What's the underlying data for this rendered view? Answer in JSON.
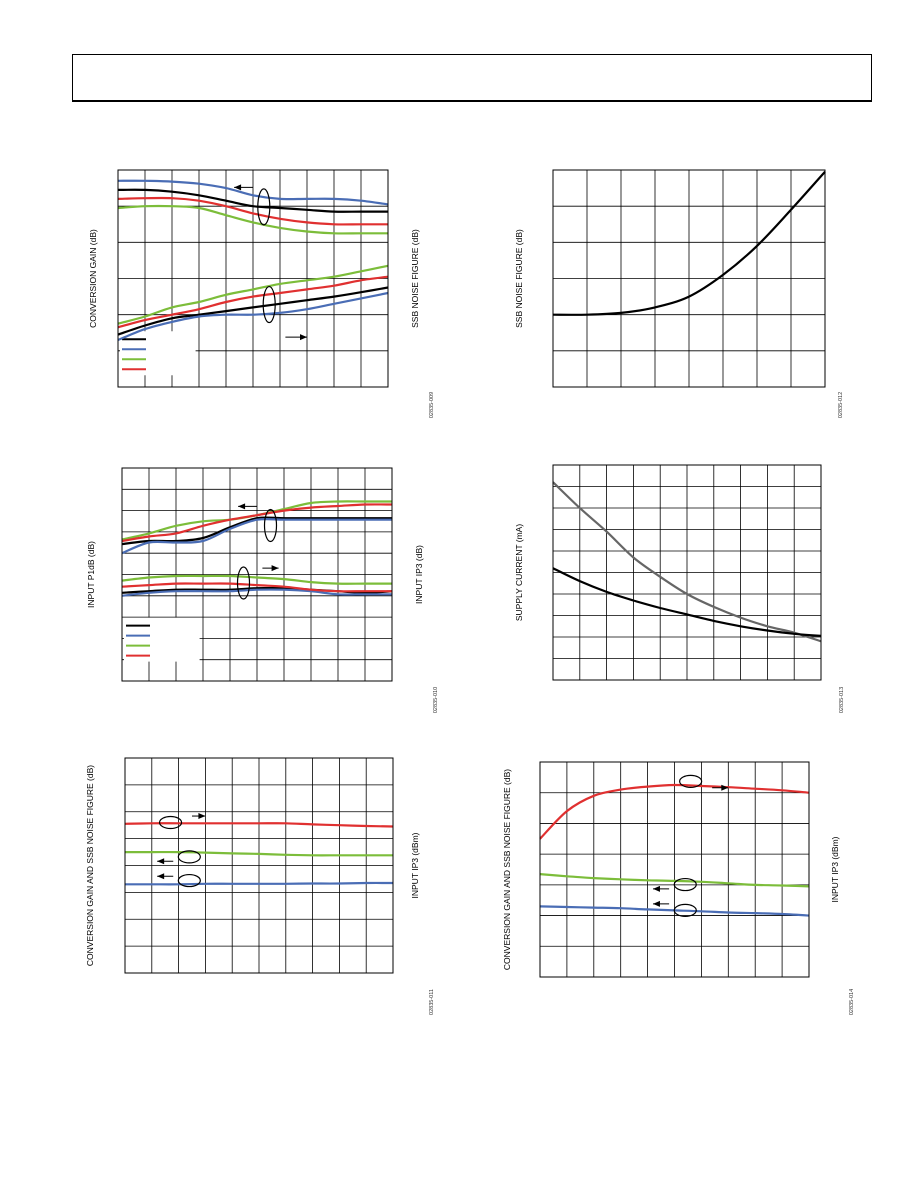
{
  "header": {},
  "chart_data": [
    {
      "id": "conversion-gain-chart",
      "type": "line",
      "ylabel_left": "CONVERSION GAIN (dB)",
      "ylabel_right": "SSB NOISE FIGURE (dB)",
      "figure_id": "02835-009",
      "grid": true,
      "x": [
        0,
        1,
        2,
        3,
        4,
        5,
        6,
        7,
        8,
        9,
        10
      ],
      "ylim": [
        0,
        6
      ],
      "series": [
        {
          "group": "conversion-gain",
          "axis": "left",
          "color": "#000000",
          "values": [
            5.45,
            5.45,
            5.4,
            5.3,
            5.15,
            5.0,
            4.95,
            4.9,
            4.85,
            4.85,
            4.85
          ]
        },
        {
          "group": "conversion-gain",
          "axis": "left",
          "color": "#4a6db5",
          "values": [
            5.7,
            5.7,
            5.68,
            5.62,
            5.5,
            5.3,
            5.2,
            5.2,
            5.2,
            5.15,
            5.05
          ]
        },
        {
          "group": "conversion-gain",
          "axis": "left",
          "color": "#7cbd3a",
          "values": [
            4.95,
            5.0,
            5.0,
            4.95,
            4.75,
            4.55,
            4.4,
            4.3,
            4.25,
            4.25,
            4.25
          ]
        },
        {
          "group": "conversion-gain",
          "axis": "left",
          "color": "#e03030",
          "values": [
            5.2,
            5.22,
            5.22,
            5.15,
            5.0,
            4.8,
            4.65,
            4.55,
            4.5,
            4.5,
            4.5
          ]
        },
        {
          "group": "noise-figure",
          "axis": "right",
          "color": "#000000",
          "values": [
            1.45,
            1.7,
            1.9,
            2.0,
            2.1,
            2.2,
            2.3,
            2.4,
            2.5,
            2.62,
            2.75
          ]
        },
        {
          "group": "noise-figure",
          "axis": "right",
          "color": "#4a6db5",
          "values": [
            1.3,
            1.6,
            1.8,
            1.95,
            2.0,
            2.0,
            2.05,
            2.15,
            2.3,
            2.45,
            2.6
          ]
        },
        {
          "group": "noise-figure",
          "axis": "right",
          "color": "#7cbd3a",
          "values": [
            1.75,
            1.95,
            2.2,
            2.35,
            2.55,
            2.7,
            2.85,
            2.95,
            3.05,
            3.2,
            3.35
          ]
        },
        {
          "group": "noise-figure",
          "axis": "right",
          "color": "#e03030",
          "values": [
            1.65,
            1.85,
            2.0,
            2.15,
            2.35,
            2.5,
            2.6,
            2.7,
            2.8,
            2.95,
            3.05
          ]
        }
      ],
      "legend_colors": [
        "#000000",
        "#4a6db5",
        "#7cbd3a",
        "#e03030"
      ],
      "arrow_annotations": [
        "conversion-gain-left",
        "noise-figure-right"
      ]
    },
    {
      "id": "ssb-noise-figure-chart",
      "type": "line",
      "ylabel_left": "SSB NOISE FIGURE (dB)",
      "figure_id": "02835-012",
      "grid": true,
      "x": [
        0,
        1,
        2,
        3,
        4,
        5,
        6,
        7,
        8
      ],
      "ylim": [
        0,
        6
      ],
      "series": [
        {
          "color": "#000000",
          "values": [
            2.0,
            2.0,
            2.05,
            2.2,
            2.5,
            3.1,
            3.9,
            4.9,
            5.95
          ]
        }
      ]
    },
    {
      "id": "input-p1db-chart",
      "type": "line",
      "ylabel_left": "INPUT P1dB (dB)",
      "ylabel_right": "INPUT IP3 (dB)",
      "figure_id": "02835-010",
      "grid": true,
      "x": [
        0,
        1,
        2,
        3,
        4,
        5,
        6,
        7,
        8,
        9,
        10
      ],
      "ylim": [
        0,
        7
      ],
      "series": [
        {
          "group": "ip3",
          "axis": "right",
          "color": "#000000",
          "values": [
            4.5,
            4.6,
            4.6,
            4.7,
            5.05,
            5.35,
            5.35,
            5.35,
            5.35,
            5.35,
            5.35
          ]
        },
        {
          "group": "ip3",
          "axis": "right",
          "color": "#4a6db5",
          "values": [
            4.2,
            4.55,
            4.55,
            4.6,
            5.0,
            5.3,
            5.3,
            5.3,
            5.3,
            5.3,
            5.3
          ]
        },
        {
          "group": "ip3",
          "axis": "right",
          "color": "#7cbd3a",
          "values": [
            4.65,
            4.85,
            5.1,
            5.25,
            5.3,
            5.45,
            5.65,
            5.85,
            5.9,
            5.9,
            5.9
          ]
        },
        {
          "group": "ip3",
          "axis": "right",
          "color": "#e03030",
          "values": [
            4.6,
            4.75,
            4.85,
            5.1,
            5.3,
            5.45,
            5.6,
            5.7,
            5.75,
            5.8,
            5.8
          ]
        },
        {
          "group": "p1db",
          "axis": "left",
          "color": "#000000",
          "values": [
            2.9,
            2.95,
            3.0,
            3.0,
            3.0,
            3.05,
            3.05,
            3.0,
            2.95,
            2.9,
            2.95
          ]
        },
        {
          "group": "p1db",
          "axis": "left",
          "color": "#4a6db5",
          "values": [
            2.8,
            2.9,
            2.95,
            2.95,
            2.95,
            3.0,
            3.0,
            2.95,
            2.85,
            2.85,
            2.85
          ]
        },
        {
          "group": "p1db",
          "axis": "left",
          "color": "#7cbd3a",
          "values": [
            3.3,
            3.4,
            3.45,
            3.45,
            3.45,
            3.4,
            3.35,
            3.25,
            3.2,
            3.2,
            3.2
          ]
        },
        {
          "group": "p1db",
          "axis": "left",
          "color": "#e03030",
          "values": [
            3.1,
            3.15,
            3.2,
            3.2,
            3.2,
            3.15,
            3.1,
            3.0,
            2.95,
            2.95,
            2.95
          ]
        }
      ],
      "legend_colors": [
        "#000000",
        "#4a6db5",
        "#7cbd3a",
        "#e03030"
      ],
      "arrow_annotations": [
        "ip3-left",
        "p1db-right"
      ]
    },
    {
      "id": "supply-current-chart",
      "type": "line",
      "ylabel_left": "SUPPLY CURRENT (mA)",
      "figure_id": "02835-013",
      "grid": true,
      "x": [
        0,
        1,
        2,
        3,
        4,
        5,
        6,
        7,
        8,
        9,
        10
      ],
      "ylim": [
        0,
        10
      ],
      "series": [
        {
          "color": "#666666",
          "values": [
            9.2,
            8.0,
            6.9,
            5.7,
            4.8,
            4.0,
            3.4,
            2.9,
            2.5,
            2.2,
            1.8
          ]
        },
        {
          "color": "#000000",
          "values": [
            5.2,
            4.6,
            4.1,
            3.7,
            3.35,
            3.05,
            2.75,
            2.5,
            2.3,
            2.15,
            2.05
          ]
        }
      ]
    },
    {
      "id": "conversion-gain-nf-ip3-chart-left",
      "type": "line",
      "ylabel_left": "CONVERSION GAIN AND SSB NOISE FIGURE (dB)",
      "ylabel_right": "INPUT IP3 (dBm)",
      "figure_id": "02835-011",
      "grid": true,
      "x": [
        0,
        1,
        2,
        3,
        4,
        5,
        6,
        7,
        8,
        9,
        10
      ],
      "ylim": [
        0,
        8
      ],
      "series": [
        {
          "color": "#e03030",
          "values": [
            5.55,
            5.57,
            5.57,
            5.57,
            5.57,
            5.57,
            5.57,
            5.53,
            5.5,
            5.47,
            5.45
          ]
        },
        {
          "color": "#7cbd3a",
          "values": [
            4.5,
            4.5,
            4.5,
            4.48,
            4.45,
            4.43,
            4.4,
            4.38,
            4.38,
            4.38,
            4.38
          ]
        },
        {
          "color": "#4a6db5",
          "values": [
            3.3,
            3.3,
            3.3,
            3.32,
            3.32,
            3.32,
            3.32,
            3.33,
            3.33,
            3.35,
            3.35
          ]
        }
      ],
      "arrow_annotations": [
        "ip3-right",
        "gain-left",
        "nf-left"
      ]
    },
    {
      "id": "conversion-gain-nf-ip3-chart-right",
      "type": "line",
      "ylabel_left": "CONVERSION GAIN AND SSB NOISE FIGURE (dB)",
      "ylabel_right": "INPUT IP3 (dBm)",
      "figure_id": "02835-014",
      "grid": true,
      "x": [
        0,
        1,
        2,
        3,
        4,
        5,
        6,
        7,
        8,
        9,
        10
      ],
      "ylim": [
        0,
        7
      ],
      "series": [
        {
          "color": "#e03030",
          "values": [
            4.5,
            5.4,
            5.9,
            6.1,
            6.2,
            6.25,
            6.22,
            6.18,
            6.13,
            6.08,
            6.0
          ]
        },
        {
          "color": "#7cbd3a",
          "values": [
            3.35,
            3.28,
            3.22,
            3.18,
            3.15,
            3.13,
            3.1,
            3.05,
            3.0,
            2.98,
            2.95
          ]
        },
        {
          "color": "#4a6db5",
          "values": [
            2.3,
            2.28,
            2.26,
            2.24,
            2.2,
            2.17,
            2.14,
            2.1,
            2.08,
            2.05,
            2.0
          ]
        }
      ],
      "arrow_annotations": [
        "ip3-right",
        "gain-left",
        "nf-left"
      ]
    }
  ]
}
